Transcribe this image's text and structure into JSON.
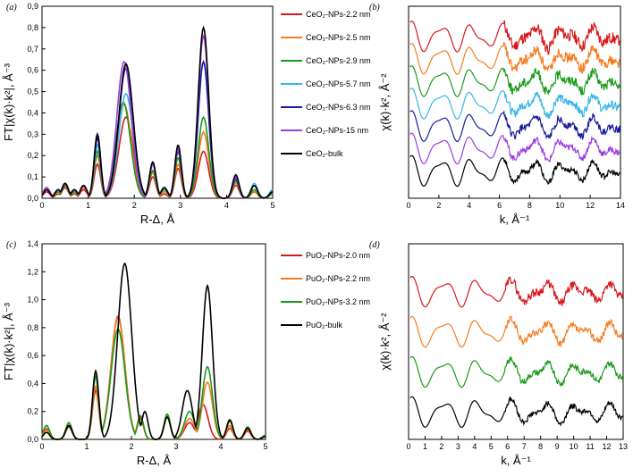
{
  "chart_data": [
    {
      "panel": "(a)",
      "type": "line",
      "xlabel": "R-Δ, Å",
      "ylabel": "FT|χ(k)·k²|, Å⁻³",
      "xlim": [
        0,
        5
      ],
      "ylim": [
        0,
        0.9
      ],
      "xticks": [
        "0",
        "1",
        "2",
        "3",
        "4",
        "5"
      ],
      "yticks": [
        "0,0",
        "0,1",
        "0,2",
        "0,3",
        "0,4",
        "0,5",
        "0,6",
        "0,7",
        "0,8",
        "0,9"
      ],
      "series": [
        {
          "name": "CeO₂-NPs-2.2 nm",
          "color": "#d7191c",
          "peaks": [
            [
              0.1,
              0.03
            ],
            [
              0.35,
              0.02
            ],
            [
              0.5,
              0.05
            ],
            [
              0.7,
              0.02
            ],
            [
              0.9,
              0.04
            ],
            [
              1.2,
              0.16
            ],
            [
              1.82,
              0.38
            ],
            [
              2.4,
              0.1
            ],
            [
              2.65,
              0.02
            ],
            [
              2.95,
              0.14
            ],
            [
              3.5,
              0.22
            ],
            [
              4.2,
              0.06
            ],
            [
              4.6,
              0.03
            ],
            [
              5,
              0.02
            ]
          ]
        },
        {
          "name": "CeO₂-NPs-2.5 nm",
          "color": "#f57c20",
          "peaks": [
            [
              0.1,
              0.04
            ],
            [
              0.35,
              0.03
            ],
            [
              0.5,
              0.06
            ],
            [
              0.7,
              0.03
            ],
            [
              0.9,
              0.05
            ],
            [
              1.2,
              0.2
            ],
            [
              1.78,
              0.44
            ],
            [
              2.4,
              0.12
            ],
            [
              2.65,
              0.03
            ],
            [
              2.95,
              0.16
            ],
            [
              3.5,
              0.31
            ],
            [
              4.2,
              0.07
            ],
            [
              4.6,
              0.03
            ],
            [
              5,
              0.02
            ]
          ]
        },
        {
          "name": "CeO₂-NPs-2.9 nm",
          "color": "#1a9a1a",
          "peaks": [
            [
              0.1,
              0.04
            ],
            [
              0.35,
              0.03
            ],
            [
              0.5,
              0.06
            ],
            [
              0.7,
              0.03
            ],
            [
              0.9,
              0.06
            ],
            [
              1.2,
              0.22
            ],
            [
              1.76,
              0.45
            ],
            [
              2.4,
              0.13
            ],
            [
              2.65,
              0.04
            ],
            [
              2.95,
              0.19
            ],
            [
              3.5,
              0.38
            ],
            [
              4.2,
              0.08
            ],
            [
              4.6,
              0.04
            ],
            [
              5,
              0.02
            ]
          ]
        },
        {
          "name": "CeO₂-NPs-5.7 nm",
          "color": "#39b6e8",
          "peaks": [
            [
              0.1,
              0.05
            ],
            [
              0.35,
              0.04
            ],
            [
              0.5,
              0.07
            ],
            [
              0.7,
              0.04
            ],
            [
              0.9,
              0.06
            ],
            [
              1.2,
              0.25
            ],
            [
              1.82,
              0.49
            ],
            [
              2.4,
              0.16
            ],
            [
              2.65,
              0.05
            ],
            [
              2.95,
              0.24
            ],
            [
              3.5,
              0.64
            ],
            [
              4.2,
              0.1
            ],
            [
              4.6,
              0.07
            ],
            [
              5,
              0.04
            ]
          ]
        },
        {
          "name": "CeO₂-NPs-6.3 nm",
          "color": "#1c1c9c",
          "peaks": [
            [
              0.1,
              0.05
            ],
            [
              0.35,
              0.04
            ],
            [
              0.5,
              0.07
            ],
            [
              0.7,
              0.04
            ],
            [
              0.9,
              0.06
            ],
            [
              1.2,
              0.28
            ],
            [
              1.82,
              0.61
            ],
            [
              2.4,
              0.16
            ],
            [
              2.65,
              0.05
            ],
            [
              2.95,
              0.22
            ],
            [
              3.5,
              0.64
            ],
            [
              4.2,
              0.09
            ],
            [
              4.6,
              0.06
            ],
            [
              5,
              0.03
            ]
          ]
        },
        {
          "name": "CeO₂-NPs-15 nm",
          "color": "#9b3ce0",
          "peaks": [
            [
              0.1,
              0.05
            ],
            [
              0.35,
              0.04
            ],
            [
              0.5,
              0.07
            ],
            [
              0.7,
              0.04
            ],
            [
              0.9,
              0.06
            ],
            [
              1.2,
              0.3
            ],
            [
              1.78,
              0.64
            ],
            [
              2.4,
              0.16
            ],
            [
              2.65,
              0.05
            ],
            [
              2.95,
              0.23
            ],
            [
              3.5,
              0.76
            ],
            [
              4.2,
              0.1
            ],
            [
              4.6,
              0.06
            ],
            [
              5,
              0.03
            ]
          ]
        },
        {
          "name": "CeO₂-bulk",
          "color": "#000000",
          "peaks": [
            [
              0.1,
              0.04
            ],
            [
              0.35,
              0.04
            ],
            [
              0.5,
              0.07
            ],
            [
              0.7,
              0.04
            ],
            [
              0.9,
              0.06
            ],
            [
              1.2,
              0.3
            ],
            [
              1.82,
              0.63
            ],
            [
              2.4,
              0.17
            ],
            [
              2.65,
              0.05
            ],
            [
              2.95,
              0.25
            ],
            [
              3.5,
              0.8
            ],
            [
              4.2,
              0.11
            ],
            [
              4.6,
              0.06
            ],
            [
              5,
              0.03
            ]
          ]
        }
      ]
    },
    {
      "panel": "(b)",
      "type": "line",
      "xlabel": "k, Å⁻¹",
      "ylabel": "χ(k)·k², Å⁻²",
      "xlim": [
        0,
        14
      ],
      "xticks": [
        "0",
        "2",
        "4",
        "6",
        "8",
        "10",
        "12",
        "14"
      ],
      "series": [
        {
          "name": "CeO₂-NPs-2.2 nm",
          "color": "#d7191c",
          "offset": 6
        },
        {
          "name": "CeO₂-NPs-2.5 nm",
          "color": "#f57c20",
          "offset": 5
        },
        {
          "name": "CeO₂-NPs-2.9 nm",
          "color": "#1a9a1a",
          "offset": 4
        },
        {
          "name": "CeO₂-NPs-5.7 nm",
          "color": "#39b6e8",
          "offset": 3
        },
        {
          "name": "CeO₂-NPs-6.3 nm",
          "color": "#1c1c9c",
          "offset": 2
        },
        {
          "name": "CeO₂-NPs-15 nm",
          "color": "#9b3ce0",
          "offset": 1
        },
        {
          "name": "CeO₂-bulk",
          "color": "#000000",
          "offset": 0
        }
      ]
    },
    {
      "panel": "(c)",
      "type": "line",
      "xlabel": "R-Δ, Å",
      "ylabel": "FT|χ(k)·k²|, Å⁻³",
      "xlim": [
        0,
        5
      ],
      "ylim": [
        0,
        1.4
      ],
      "xticks": [
        "0",
        "1",
        "2",
        "3",
        "4",
        "5"
      ],
      "yticks": [
        "0,0",
        "0,2",
        "0,4",
        "0,6",
        "0,8",
        "1,0",
        "1,2",
        "1,4"
      ],
      "series": [
        {
          "name": "PuO₂-NPs-2.0 nm",
          "color": "#d7191c",
          "peaks": [
            [
              0.1,
              0.07
            ],
            [
              0.6,
              0.09
            ],
            [
              1.2,
              0.35
            ],
            [
              1.7,
              0.88
            ],
            [
              2.2,
              0.15
            ],
            [
              2.8,
              0.18
            ],
            [
              3.3,
              0.12
            ],
            [
              3.6,
              0.25
            ],
            [
              4.2,
              0.08
            ],
            [
              4.6,
              0.06
            ],
            [
              5,
              0.02
            ]
          ]
        },
        {
          "name": "PuO₂-NPs-2.2 nm",
          "color": "#f57c20",
          "peaks": [
            [
              0.1,
              0.08
            ],
            [
              0.6,
              0.1
            ],
            [
              1.2,
              0.38
            ],
            [
              1.7,
              0.87
            ],
            [
              2.2,
              0.16
            ],
            [
              2.8,
              0.17
            ],
            [
              3.3,
              0.15
            ],
            [
              3.7,
              0.41
            ],
            [
              4.2,
              0.1
            ],
            [
              4.6,
              0.07
            ],
            [
              5,
              0.02
            ]
          ]
        },
        {
          "name": "PuO₂-NPs-3.2 nm",
          "color": "#1a9a1a",
          "peaks": [
            [
              0.1,
              0.1
            ],
            [
              0.6,
              0.12
            ],
            [
              1.2,
              0.45
            ],
            [
              1.7,
              0.79
            ],
            [
              2.2,
              0.17
            ],
            [
              2.8,
              0.18
            ],
            [
              3.3,
              0.2
            ],
            [
              3.7,
              0.52
            ],
            [
              4.2,
              0.13
            ],
            [
              4.6,
              0.09
            ],
            [
              5,
              0.03
            ]
          ]
        },
        {
          "name": "PuO₂-bulk",
          "color": "#000000",
          "peaks": [
            [
              0.1,
              0.05
            ],
            [
              0.6,
              0.1
            ],
            [
              1.2,
              0.49
            ],
            [
              1.85,
              1.26
            ],
            [
              2.3,
              0.2
            ],
            [
              2.8,
              0.16
            ],
            [
              3.25,
              0.35
            ],
            [
              3.7,
              1.1
            ],
            [
              4.2,
              0.14
            ],
            [
              4.6,
              0.08
            ],
            [
              5,
              0.02
            ]
          ]
        }
      ]
    },
    {
      "panel": "(d)",
      "type": "line",
      "xlabel": "k, Å⁻¹",
      "ylabel": "χ(k)·k², Å⁻²",
      "xlim": [
        0,
        13
      ],
      "xticks": [
        "0",
        "1",
        "2",
        "3",
        "4",
        "5",
        "6",
        "7",
        "8",
        "9",
        "10",
        "11",
        "12",
        "13"
      ],
      "series": [
        {
          "name": "PuO₂-NPs-2.0 nm",
          "color": "#d7191c",
          "offset": 3
        },
        {
          "name": "PuO₂-NPs-2.2 nm",
          "color": "#f57c20",
          "offset": 2
        },
        {
          "name": "PuO₂-NPs-3.2 nm",
          "color": "#1a9a1a",
          "offset": 1
        },
        {
          "name": "PuO₂-bulk",
          "color": "#000000",
          "offset": 0
        }
      ]
    }
  ]
}
